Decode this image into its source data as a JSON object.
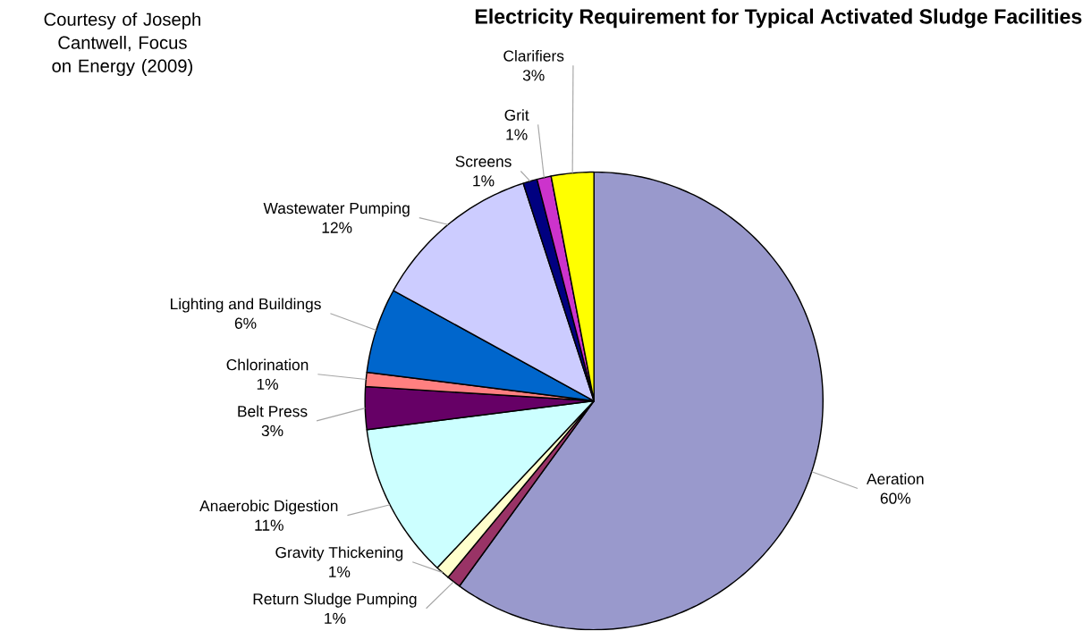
{
  "chart_data": {
    "type": "pie",
    "title": "Electricity Requirement for Typical Activated Sludge Facilities",
    "annotations": [
      "Courtesy of Joseph Cantwell, Focus on Energy (2009)"
    ],
    "categories": [
      "Aeration",
      "Return Sludge Pumping",
      "Gravity Thickening",
      "Anaerobic Digestion",
      "Belt Press",
      "Chlorination",
      "Lighting and Buildings",
      "Wastewater Pumping",
      "Screens",
      "Grit",
      "Clarifiers"
    ],
    "values": [
      60,
      1,
      1,
      11,
      3,
      1,
      6,
      12,
      1,
      1,
      3
    ],
    "value_labels": [
      "60%",
      "1%",
      "1%",
      "11%",
      "3%",
      "1%",
      "6%",
      "12%",
      "1%",
      "1%",
      "3%"
    ],
    "colors": [
      "#9999cc",
      "#993366",
      "#ffffcc",
      "#ccffff",
      "#660066",
      "#ff8080",
      "#0066cc",
      "#ccccff",
      "#000080",
      "#cc33cc",
      "#ffff00"
    ]
  }
}
